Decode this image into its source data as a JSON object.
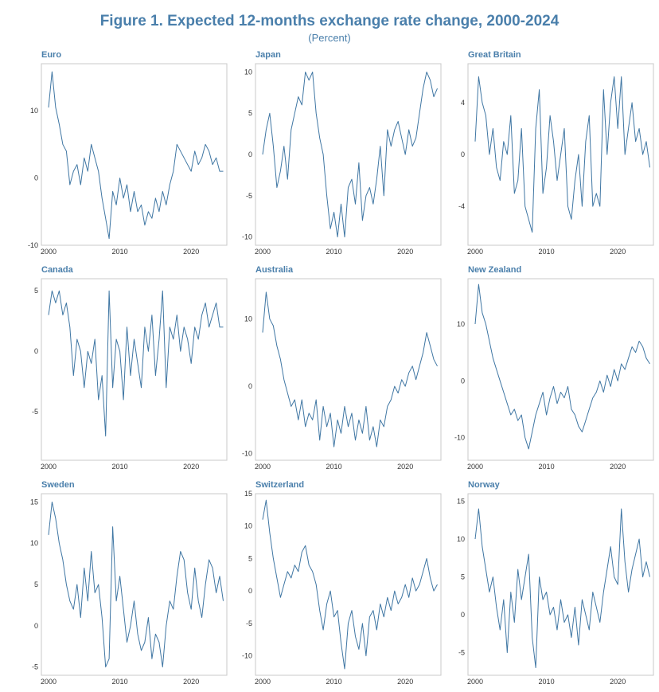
{
  "figure": {
    "title": "Figure 1. Expected 12-months exchange rate change, 2000-2024",
    "subtitle": "(Percent)"
  },
  "colors": {
    "title": "#4a7fab",
    "line": "#3f76a3",
    "frame": "#c8c8c8"
  },
  "chart_data": [
    {
      "type": "line",
      "title": "Euro",
      "xlim": [
        1999,
        2025
      ],
      "ylim": [
        -10,
        17
      ],
      "xticks": [
        2000,
        2010,
        2020
      ],
      "yticks": [
        -10,
        0,
        10
      ],
      "x": [
        2000,
        2000.5,
        2001,
        2001.5,
        2002,
        2002.5,
        2003,
        2003.5,
        2004,
        2004.5,
        2005,
        2005.5,
        2006,
        2006.5,
        2007,
        2007.5,
        2008,
        2008.5,
        2009,
        2009.5,
        2010,
        2010.5,
        2011,
        2011.5,
        2012,
        2012.5,
        2013,
        2013.5,
        2014,
        2014.5,
        2015,
        2015.5,
        2016,
        2016.5,
        2017,
        2017.5,
        2018,
        2018.5,
        2019,
        2019.5,
        2020,
        2020.5,
        2021,
        2021.5,
        2022,
        2022.5,
        2023,
        2023.5,
        2024,
        2024.5
      ],
      "values": [
        10.5,
        15.8,
        10.5,
        8,
        5,
        4,
        -1,
        1,
        2,
        -1,
        3,
        1,
        5,
        3,
        1,
        -3,
        -6,
        -9,
        -2,
        -4,
        0,
        -3,
        -1,
        -5,
        -2,
        -5,
        -4,
        -7,
        -5,
        -6,
        -3,
        -5,
        -2,
        -4,
        -1,
        1,
        5,
        4,
        3,
        2,
        1,
        4,
        2,
        3,
        5,
        4,
        2,
        3,
        1,
        1
      ]
    },
    {
      "type": "line",
      "title": "Japan",
      "xlim": [
        1999,
        2025
      ],
      "ylim": [
        -11,
        11
      ],
      "xticks": [
        2000,
        2010,
        2020
      ],
      "yticks": [
        -10,
        -5,
        0,
        5,
        10
      ],
      "x": [
        2000,
        2000.5,
        2001,
        2001.5,
        2002,
        2002.5,
        2003,
        2003.5,
        2004,
        2004.5,
        2005,
        2005.5,
        2006,
        2006.5,
        2007,
        2007.5,
        2008,
        2008.5,
        2009,
        2009.5,
        2010,
        2010.5,
        2011,
        2011.5,
        2012,
        2012.5,
        2013,
        2013.5,
        2014,
        2014.5,
        2015,
        2015.5,
        2016,
        2016.5,
        2017,
        2017.5,
        2018,
        2018.5,
        2019,
        2019.5,
        2020,
        2020.5,
        2021,
        2021.5,
        2022,
        2022.5,
        2023,
        2023.5,
        2024,
        2024.5
      ],
      "values": [
        0,
        3,
        5,
        1,
        -4,
        -2,
        1,
        -3,
        3,
        5,
        7,
        6,
        10,
        9,
        10,
        5,
        2,
        0,
        -5,
        -9,
        -7,
        -10,
        -6,
        -10,
        -4,
        -3,
        -6,
        -1,
        -8,
        -5,
        -4,
        -6,
        -3,
        1,
        -5,
        3,
        1,
        3,
        4,
        2,
        0,
        3,
        1,
        2,
        5,
        8,
        10,
        9,
        7,
        8
      ]
    },
    {
      "type": "line",
      "title": "Great Britain",
      "xlim": [
        1999,
        2025
      ],
      "ylim": [
        -7,
        7
      ],
      "xticks": [
        2000,
        2010,
        2020
      ],
      "yticks": [
        -4,
        0,
        4
      ],
      "x": [
        2000,
        2000.5,
        2001,
        2001.5,
        2002,
        2002.5,
        2003,
        2003.5,
        2004,
        2004.5,
        2005,
        2005.5,
        2006,
        2006.5,
        2007,
        2007.5,
        2008,
        2008.5,
        2009,
        2009.5,
        2010,
        2010.5,
        2011,
        2011.5,
        2012,
        2012.5,
        2013,
        2013.5,
        2014,
        2014.5,
        2015,
        2015.5,
        2016,
        2016.5,
        2017,
        2017.5,
        2018,
        2018.5,
        2019,
        2019.5,
        2020,
        2020.5,
        2021,
        2021.5,
        2022,
        2022.5,
        2023,
        2023.5,
        2024,
        2024.5
      ],
      "values": [
        1,
        6,
        4,
        3,
        0,
        2,
        -1,
        -2,
        1,
        0,
        3,
        -3,
        -2,
        2,
        -4,
        -5,
        -6,
        2,
        5,
        -3,
        -1,
        3,
        1,
        -2,
        0,
        2,
        -4,
        -5,
        -2,
        0,
        -4,
        1,
        3,
        -4,
        -3,
        -4,
        5,
        0,
        4,
        6,
        2,
        6,
        0,
        2,
        4,
        1,
        2,
        0,
        1,
        -1
      ]
    },
    {
      "type": "line",
      "title": "Canada",
      "xlim": [
        1999,
        2025
      ],
      "ylim": [
        -9,
        6
      ],
      "xticks": [
        2000,
        2010,
        2020
      ],
      "yticks": [
        -5,
        0,
        5
      ],
      "x": [
        2000,
        2000.5,
        2001,
        2001.5,
        2002,
        2002.5,
        2003,
        2003.5,
        2004,
        2004.5,
        2005,
        2005.5,
        2006,
        2006.5,
        2007,
        2007.5,
        2008,
        2008.5,
        2009,
        2009.5,
        2010,
        2010.5,
        2011,
        2011.5,
        2012,
        2012.5,
        2013,
        2013.5,
        2014,
        2014.5,
        2015,
        2015.5,
        2016,
        2016.5,
        2017,
        2017.5,
        2018,
        2018.5,
        2019,
        2019.5,
        2020,
        2020.5,
        2021,
        2021.5,
        2022,
        2022.5,
        2023,
        2023.5,
        2024,
        2024.5
      ],
      "values": [
        3,
        5,
        4,
        5,
        3,
        4,
        2,
        -2,
        1,
        0,
        -3,
        0,
        -1,
        1,
        -4,
        -2,
        -7,
        5,
        -3,
        1,
        0,
        -4,
        2,
        -2,
        1,
        -1,
        -3,
        2,
        0,
        3,
        -2,
        1,
        5,
        -3,
        2,
        1,
        3,
        0,
        2,
        1,
        -1,
        2,
        1,
        3,
        4,
        2,
        3,
        4,
        2,
        2
      ]
    },
    {
      "type": "line",
      "title": "Australia",
      "xlim": [
        1999,
        2025
      ],
      "ylim": [
        -11,
        16
      ],
      "xticks": [
        2000,
        2010,
        2020
      ],
      "yticks": [
        -10,
        0,
        10
      ],
      "x": [
        2000,
        2000.5,
        2001,
        2001.5,
        2002,
        2002.5,
        2003,
        2003.5,
        2004,
        2004.5,
        2005,
        2005.5,
        2006,
        2006.5,
        2007,
        2007.5,
        2008,
        2008.5,
        2009,
        2009.5,
        2010,
        2010.5,
        2011,
        2011.5,
        2012,
        2012.5,
        2013,
        2013.5,
        2014,
        2014.5,
        2015,
        2015.5,
        2016,
        2016.5,
        2017,
        2017.5,
        2018,
        2018.5,
        2019,
        2019.5,
        2020,
        2020.5,
        2021,
        2021.5,
        2022,
        2022.5,
        2023,
        2023.5,
        2024,
        2024.5
      ],
      "values": [
        8,
        14,
        10,
        9,
        6,
        4,
        1,
        -1,
        -3,
        -2,
        -5,
        -2,
        -6,
        -4,
        -5,
        -2,
        -8,
        -3,
        -6,
        -4,
        -9,
        -5,
        -7,
        -3,
        -6,
        -4,
        -8,
        -5,
        -7,
        -3,
        -8,
        -6,
        -9,
        -5,
        -6,
        -3,
        -2,
        0,
        -1,
        1,
        0,
        2,
        3,
        1,
        3,
        5,
        8,
        6,
        4,
        3
      ]
    },
    {
      "type": "line",
      "title": "New Zealand",
      "xlim": [
        1999,
        2025
      ],
      "ylim": [
        -14,
        18
      ],
      "xticks": [
        2000,
        2010,
        2020
      ],
      "yticks": [
        -10,
        0,
        10
      ],
      "x": [
        2000,
        2000.5,
        2001,
        2001.5,
        2002,
        2002.5,
        2003,
        2003.5,
        2004,
        2004.5,
        2005,
        2005.5,
        2006,
        2006.5,
        2007,
        2007.5,
        2008,
        2008.5,
        2009,
        2009.5,
        2010,
        2010.5,
        2011,
        2011.5,
        2012,
        2012.5,
        2013,
        2013.5,
        2014,
        2014.5,
        2015,
        2015.5,
        2016,
        2016.5,
        2017,
        2017.5,
        2018,
        2018.5,
        2019,
        2019.5,
        2020,
        2020.5,
        2021,
        2021.5,
        2022,
        2022.5,
        2023,
        2023.5,
        2024,
        2024.5
      ],
      "values": [
        10,
        17,
        12,
        10,
        7,
        4,
        2,
        0,
        -2,
        -4,
        -6,
        -5,
        -7,
        -6,
        -10,
        -12,
        -9,
        -6,
        -4,
        -2,
        -6,
        -3,
        -1,
        -4,
        -2,
        -3,
        -1,
        -5,
        -6,
        -8,
        -9,
        -7,
        -5,
        -3,
        -2,
        0,
        -2,
        1,
        -1,
        2,
        0,
        3,
        2,
        4,
        6,
        5,
        7,
        6,
        4,
        3
      ]
    },
    {
      "type": "line",
      "title": "Sweden",
      "xlim": [
        1999,
        2025
      ],
      "ylim": [
        -6,
        16
      ],
      "xticks": [
        2000,
        2010,
        2020
      ],
      "yticks": [
        -5,
        0,
        5,
        10,
        15
      ],
      "x": [
        2000,
        2000.5,
        2001,
        2001.5,
        2002,
        2002.5,
        2003,
        2003.5,
        2004,
        2004.5,
        2005,
        2005.5,
        2006,
        2006.5,
        2007,
        2007.5,
        2008,
        2008.5,
        2009,
        2009.5,
        2010,
        2010.5,
        2011,
        2011.5,
        2012,
        2012.5,
        2013,
        2013.5,
        2014,
        2014.5,
        2015,
        2015.5,
        2016,
        2016.5,
        2017,
        2017.5,
        2018,
        2018.5,
        2019,
        2019.5,
        2020,
        2020.5,
        2021,
        2021.5,
        2022,
        2022.5,
        2023,
        2023.5,
        2024,
        2024.5
      ],
      "values": [
        11,
        15,
        13,
        10,
        8,
        5,
        3,
        2,
        5,
        1,
        7,
        3,
        9,
        4,
        5,
        1,
        -5,
        -4,
        12,
        3,
        6,
        2,
        -2,
        0,
        3,
        -1,
        -3,
        -2,
        1,
        -4,
        -1,
        -2,
        -5,
        0,
        3,
        2,
        6,
        9,
        8,
        4,
        2,
        7,
        3,
        1,
        5,
        8,
        7,
        4,
        6,
        3
      ]
    },
    {
      "type": "line",
      "title": "Switzerland",
      "xlim": [
        1999,
        2025
      ],
      "ylim": [
        -13,
        15
      ],
      "xticks": [
        2000,
        2010,
        2020
      ],
      "yticks": [
        -10,
        -5,
        0,
        5,
        10,
        15
      ],
      "x": [
        2000,
        2000.5,
        2001,
        2001.5,
        2002,
        2002.5,
        2003,
        2003.5,
        2004,
        2004.5,
        2005,
        2005.5,
        2006,
        2006.5,
        2007,
        2007.5,
        2008,
        2008.5,
        2009,
        2009.5,
        2010,
        2010.5,
        2011,
        2011.5,
        2012,
        2012.5,
        2013,
        2013.5,
        2014,
        2014.5,
        2015,
        2015.5,
        2016,
        2016.5,
        2017,
        2017.5,
        2018,
        2018.5,
        2019,
        2019.5,
        2020,
        2020.5,
        2021,
        2021.5,
        2022,
        2022.5,
        2023,
        2023.5,
        2024,
        2024.5
      ],
      "values": [
        11,
        14,
        9,
        5,
        2,
        -1,
        1,
        3,
        2,
        4,
        3,
        6,
        7,
        4,
        3,
        1,
        -3,
        -6,
        -2,
        0,
        -4,
        -3,
        -8,
        -12,
        -5,
        -3,
        -7,
        -9,
        -5,
        -10,
        -4,
        -3,
        -6,
        -2,
        -4,
        -1,
        -3,
        0,
        -2,
        -1,
        1,
        -1,
        2,
        0,
        1,
        3,
        5,
        2,
        0,
        1
      ]
    },
    {
      "type": "line",
      "title": "Norway",
      "xlim": [
        1999,
        2025
      ],
      "ylim": [
        -8,
        16
      ],
      "xticks": [
        2000,
        2010,
        2020
      ],
      "yticks": [
        -5,
        0,
        5,
        10,
        15
      ],
      "x": [
        2000,
        2000.5,
        2001,
        2001.5,
        2002,
        2002.5,
        2003,
        2003.5,
        2004,
        2004.5,
        2005,
        2005.5,
        2006,
        2006.5,
        2007,
        2007.5,
        2008,
        2008.5,
        2009,
        2009.5,
        2010,
        2010.5,
        2011,
        2011.5,
        2012,
        2012.5,
        2013,
        2013.5,
        2014,
        2014.5,
        2015,
        2015.5,
        2016,
        2016.5,
        2017,
        2017.5,
        2018,
        2018.5,
        2019,
        2019.5,
        2020,
        2020.5,
        2021,
        2021.5,
        2022,
        2022.5,
        2023,
        2023.5,
        2024,
        2024.5
      ],
      "values": [
        10,
        14,
        9,
        6,
        3,
        5,
        1,
        -2,
        2,
        -5,
        3,
        -1,
        6,
        2,
        5,
        8,
        -3,
        -7,
        5,
        2,
        3,
        0,
        1,
        -2,
        2,
        -1,
        0,
        -3,
        1,
        -4,
        2,
        0,
        -2,
        3,
        1,
        -1,
        3,
        6,
        9,
        5,
        4,
        14,
        7,
        3,
        6,
        8,
        10,
        5,
        7,
        5
      ]
    }
  ]
}
